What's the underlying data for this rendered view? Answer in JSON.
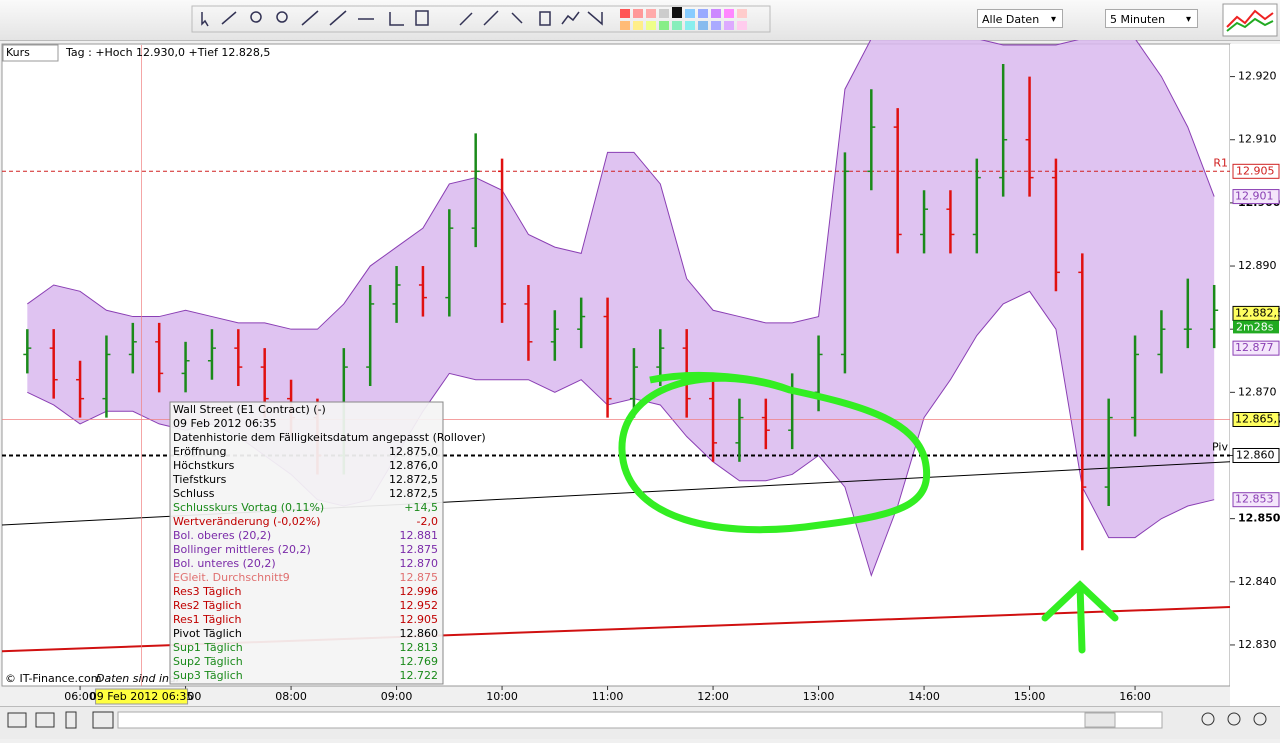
{
  "toolbar": {
    "data_filter": "Alle Daten",
    "interval": "5 Minuten"
  },
  "chart_data": {
    "type": "ohlc",
    "panel_label": "Kurs",
    "header": "Tag : +Hoch 12.930,0 +Tief 12.828,5",
    "copyright": "© IT-Finance.com",
    "disclaimer": "Daten sind indi",
    "up_color": "#1a8a1a",
    "down_color": "#e01010",
    "band_color": "#d9b8ee",
    "band_line_color": "#8a3fb4",
    "x": [
      5.5,
      5.75,
      6,
      6.25,
      6.5,
      6.75,
      7,
      7.25,
      7.5,
      7.75,
      8,
      8.25,
      8.5,
      8.75,
      9,
      9.25,
      9.5,
      9.75,
      10,
      10.25,
      10.5,
      10.75,
      11,
      11.25,
      11.5,
      11.75,
      12,
      12.25,
      12.5,
      12.75,
      13,
      13.25,
      13.5,
      13.75,
      14,
      14.25,
      14.5,
      14.75,
      15,
      15.25,
      15.5,
      15.75,
      16,
      16.25,
      16.5,
      16.75
    ],
    "open": [
      12.876,
      12.877,
      12.872,
      12.869,
      12.876,
      12.878,
      12.873,
      12.875,
      12.877,
      12.874,
      12.869,
      12.866,
      12.86,
      12.874,
      12.884,
      12.887,
      12.885,
      12.896,
      12.905,
      12.884,
      12.878,
      12.88,
      12.882,
      12.869,
      12.874,
      12.877,
      12.869,
      12.862,
      12.866,
      12.864,
      12.87,
      12.876,
      12.905,
      12.912,
      12.895,
      12.899,
      12.895,
      12.904,
      12.91,
      12.904,
      12.889,
      12.855,
      12.866,
      12.876,
      12.88,
      12.88
    ],
    "high": [
      12.88,
      12.88,
      12.875,
      12.879,
      12.881,
      12.881,
      12.878,
      12.88,
      12.88,
      12.877,
      12.872,
      12.869,
      12.877,
      12.887,
      12.89,
      12.89,
      12.899,
      12.911,
      12.907,
      12.887,
      12.883,
      12.885,
      12.885,
      12.877,
      12.88,
      12.88,
      12.872,
      12.869,
      12.869,
      12.873,
      12.879,
      12.908,
      12.918,
      12.915,
      12.902,
      12.902,
      12.907,
      12.922,
      12.92,
      12.907,
      12.892,
      12.869,
      12.879,
      12.883,
      12.888,
      12.887
    ],
    "low": [
      12.873,
      12.869,
      12.866,
      12.866,
      12.873,
      12.87,
      12.87,
      12.872,
      12.871,
      12.866,
      12.863,
      12.857,
      12.857,
      12.871,
      12.881,
      12.882,
      12.882,
      12.893,
      12.881,
      12.875,
      12.875,
      12.877,
      12.866,
      12.866,
      12.871,
      12.866,
      12.859,
      12.859,
      12.861,
      12.861,
      12.867,
      12.873,
      12.902,
      12.892,
      12.892,
      12.892,
      12.892,
      12.901,
      12.901,
      12.886,
      12.845,
      12.852,
      12.863,
      12.873,
      12.877,
      12.877
    ],
    "close": [
      12.877,
      12.872,
      12.869,
      12.876,
      12.878,
      12.873,
      12.875,
      12.877,
      12.874,
      12.869,
      12.866,
      12.86,
      12.874,
      12.884,
      12.887,
      12.885,
      12.896,
      12.905,
      12.884,
      12.878,
      12.88,
      12.882,
      12.869,
      12.874,
      12.877,
      12.869,
      12.862,
      12.866,
      12.864,
      12.87,
      12.876,
      12.905,
      12.912,
      12.895,
      12.899,
      12.895,
      12.904,
      12.91,
      12.904,
      12.889,
      12.855,
      12.866,
      12.876,
      12.88,
      12.88,
      12.883
    ],
    "band_upper": [
      12.884,
      12.887,
      12.886,
      12.883,
      12.882,
      12.882,
      12.883,
      12.882,
      12.881,
      12.881,
      12.88,
      12.88,
      12.884,
      12.89,
      12.893,
      12.896,
      12.903,
      12.904,
      12.902,
      12.895,
      12.893,
      12.892,
      12.908,
      12.908,
      12.903,
      12.888,
      12.883,
      12.882,
      12.881,
      12.881,
      12.882,
      12.918,
      12.926,
      12.926,
      12.926,
      12.926,
      12.926,
      12.925,
      12.925,
      12.925,
      12.926,
      12.926,
      12.926,
      12.92,
      12.912,
      12.901
    ],
    "band_lower": [
      12.87,
      12.868,
      12.865,
      12.867,
      12.867,
      12.865,
      12.864,
      12.865,
      12.863,
      12.86,
      12.857,
      12.853,
      12.852,
      12.853,
      12.86,
      12.867,
      12.873,
      12.872,
      12.872,
      12.872,
      12.87,
      12.872,
      12.868,
      12.869,
      12.868,
      12.863,
      12.859,
      12.856,
      12.856,
      12.857,
      12.86,
      12.855,
      12.841,
      12.852,
      12.866,
      12.872,
      12.879,
      12.884,
      12.886,
      12.88,
      12.855,
      12.847,
      12.847,
      12.85,
      12.852,
      12.853
    ],
    "xlim": [
      5.26,
      16.9
    ],
    "ylim": [
      12.8235,
      12.925
    ],
    "xticks": [
      {
        "value": 6,
        "label": "06:00"
      },
      {
        "value": 7,
        "label": "07:00"
      },
      {
        "value": 8,
        "label": "08:00"
      },
      {
        "value": 9,
        "label": "09:00"
      },
      {
        "value": 10,
        "label": "10:00"
      },
      {
        "value": 11,
        "label": "11:00"
      },
      {
        "value": 12,
        "label": "12:00"
      },
      {
        "value": 13,
        "label": "13:00"
      },
      {
        "value": 14,
        "label": "14:00"
      },
      {
        "value": 15,
        "label": "15:00"
      },
      {
        "value": 16,
        "label": "16:00"
      }
    ],
    "yticks": [
      {
        "value": 12.92,
        "label": "12.920"
      },
      {
        "value": 12.91,
        "label": "12.910"
      },
      {
        "value": 12.9,
        "label": "12.900"
      },
      {
        "value": 12.89,
        "label": "12.890"
      },
      {
        "value": 12.88,
        "label": "12.880"
      },
      {
        "value": 12.87,
        "label": "12.870"
      },
      {
        "value": 12.86,
        "label": "12.860"
      },
      {
        "value": 12.85,
        "label": "12.850"
      },
      {
        "value": 12.84,
        "label": "12.840"
      },
      {
        "value": 12.83,
        "label": "12.830"
      }
    ],
    "levels": [
      {
        "name": "R1",
        "value": 12.905,
        "label": "12.905",
        "color": "#d02020"
      },
      {
        "name": "Piv",
        "value": 12.86,
        "label": "12.860",
        "color": "#000000"
      }
    ],
    "price_labels": [
      {
        "value": 12.901,
        "label": "12.901",
        "bg": "#f4e6fb",
        "fg": "#8a3fb4"
      },
      {
        "value": 12.8825,
        "label": "12.882,5",
        "bg": "#ffff60",
        "fg": "#000000"
      },
      {
        "value": 12.877,
        "label": "12.877",
        "bg": "#f4e6fb",
        "fg": "#8a3fb4"
      },
      {
        "value": 12.8657,
        "label": "12.865,7",
        "bg": "#ffff60",
        "fg": "#000000"
      },
      {
        "value": 12.853,
        "label": "12.853",
        "bg": "#f4e6fb",
        "fg": "#8a3fb4"
      }
    ],
    "countdown": "2m28s",
    "trend_lines": [
      {
        "start": 12.849,
        "end": 12.859,
        "color": "#000000"
      },
      {
        "start": 12.829,
        "end": 12.836,
        "color": "#d01010"
      }
    ],
    "crosshair": {
      "x": 6.583,
      "y": 12.8657,
      "label": "09 Feb 2012 06:35"
    },
    "tooltip": {
      "title": "Wall Street (E1 Contract) (-)",
      "date": "09 Feb 2012 06:35",
      "note": "Datenhistorie dem Fälligkeitsdatum angepasst (Rollover)",
      "rows": [
        {
          "label": "Eröffnung",
          "value": "12.875,0",
          "color": "#000000"
        },
        {
          "label": "Höchstkurs",
          "value": "12.876,0",
          "color": "#000000"
        },
        {
          "label": "Tiefstkurs",
          "value": "12.872,5",
          "color": "#000000"
        },
        {
          "label": "Schluss",
          "value": "12.872,5",
          "color": "#000000"
        },
        {
          "label": "Schlusskurs Vortag (0,11%)",
          "value": "+14,5",
          "color": "#1a8a1a"
        },
        {
          "label": "Wertveränderung (-0,02%)",
          "value": "-2,0",
          "color": "#c00000"
        },
        {
          "label": "Bol. oberes (20,2)",
          "value": "12.881",
          "color": "#7a2aa8"
        },
        {
          "label": "Bollinger mittleres (20,2)",
          "value": "12.875",
          "color": "#7a2aa8"
        },
        {
          "label": "Bol. unteres (20,2)",
          "value": "12.870",
          "color": "#7a2aa8"
        },
        {
          "label": "EGleit. Durchschnitt9",
          "value": "12.875",
          "color": "#e07070"
        },
        {
          "label": "Res3 Täglich",
          "value": "12.996",
          "color": "#c00000"
        },
        {
          "label": "Res2 Täglich",
          "value": "12.952",
          "color": "#c00000"
        },
        {
          "label": "Res1 Täglich",
          "value": "12.905",
          "color": "#c00000"
        },
        {
          "label": "Pivot Täglich",
          "value": "12.860",
          "color": "#000000"
        },
        {
          "label": "Sup1 Täglich",
          "value": "12.813",
          "color": "#1a8a1a"
        },
        {
          "label": "Sup2 Täglich",
          "value": "12.769",
          "color": "#1a8a1a"
        },
        {
          "label": "Sup3 Täglich",
          "value": "12.722",
          "color": "#1a8a1a"
        }
      ]
    }
  }
}
